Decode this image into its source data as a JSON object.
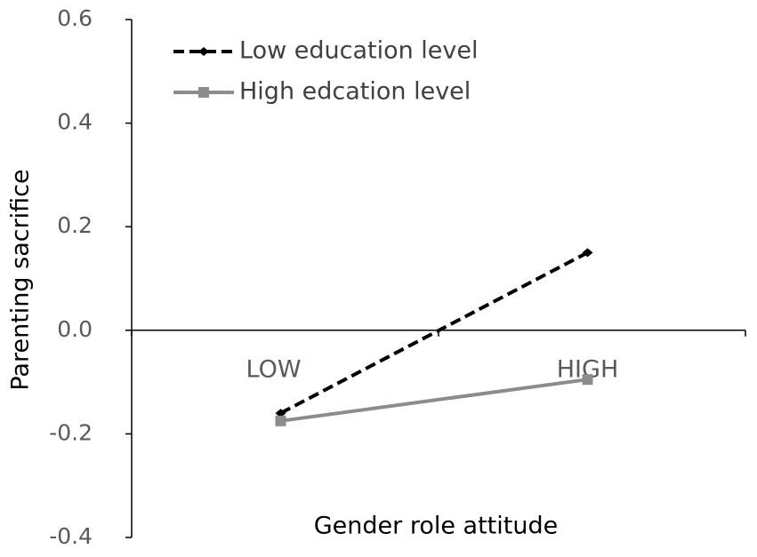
{
  "chart_data": {
    "type": "line",
    "x_label": "Gender role attitude",
    "y_label": "Parenting sacrifice",
    "categories": [
      "LOW",
      "HIGH"
    ],
    "series": [
      {
        "name": "Low education level",
        "color": "#000000",
        "dashed": true,
        "marker": "diamond",
        "values": [
          -0.16,
          0.15
        ]
      },
      {
        "name": "High edcation level",
        "color": "#8c8c8c",
        "dashed": false,
        "marker": "square",
        "values": [
          -0.175,
          -0.095
        ]
      }
    ],
    "ylim": [
      -0.4,
      0.6
    ],
    "yticks": [
      {
        "value": -0.4,
        "label": "-0.4"
      },
      {
        "value": -0.2,
        "label": "-0.2"
      },
      {
        "value": 0,
        "label": "0.0"
      },
      0.2,
      0.4,
      0.6
    ],
    "legend": "top-left"
  }
}
